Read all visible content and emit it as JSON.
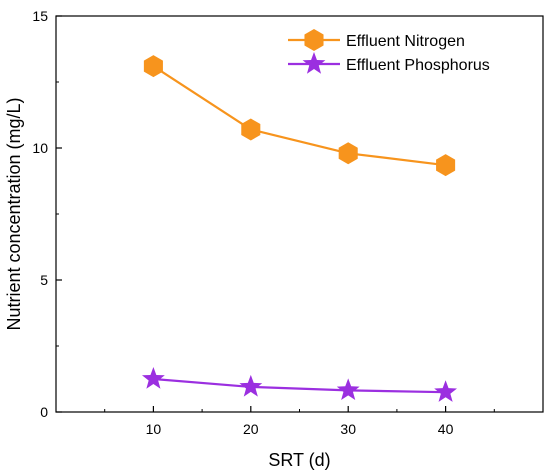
{
  "chart_data": {
    "type": "line",
    "xlabel": "SRT (d)",
    "ylabel": "Nutrient concentration (mg/L)",
    "x": [
      10,
      20,
      30,
      40
    ],
    "xlim": [
      0,
      50
    ],
    "ylim": [
      0,
      15
    ],
    "x_ticks": [
      "10",
      "20",
      "30",
      "40"
    ],
    "y_ticks": [
      "0",
      "5",
      "10",
      "15"
    ],
    "grid": false,
    "legend_position": "top-right",
    "series": [
      {
        "name": "Effluent Nitrogen",
        "values": [
          13.1,
          10.7,
          9.8,
          9.35
        ],
        "color": "#F7941D",
        "marker": "hexagon"
      },
      {
        "name": "Effluent Phosphorus",
        "values": [
          1.25,
          0.95,
          0.82,
          0.75
        ],
        "color": "#9B2FE0",
        "marker": "star"
      }
    ]
  }
}
